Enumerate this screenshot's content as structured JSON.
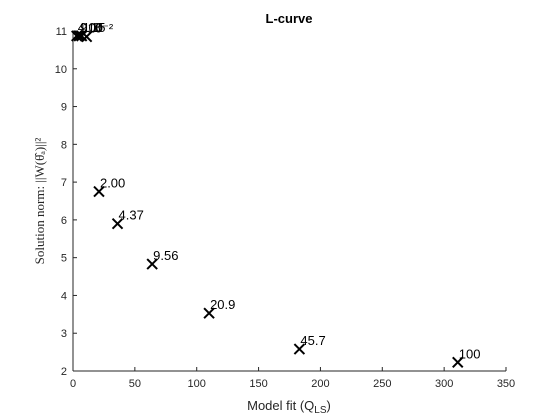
{
  "chart_data": {
    "type": "scatter",
    "title": "L-curve",
    "xlabel_main": "Model fit (Q",
    "xlabel_sub": "LS",
    "xlabel_end": ")",
    "ylabel": "Solution norm:  ||W(θ̂ₐ)||²",
    "xlim": [
      0,
      350
    ],
    "ylim": [
      2,
      11
    ],
    "xticks": [
      0,
      50,
      100,
      150,
      200,
      250,
      300,
      350
    ],
    "yticks": [
      2,
      3,
      4,
      5,
      6,
      7,
      8,
      9,
      10,
      11
    ],
    "grid": false,
    "marker": "x",
    "color": "#000000",
    "points": [
      {
        "x": 3,
        "y": 10.87,
        "label": "4.00"
      },
      {
        "x": 5,
        "y": 10.87,
        "label": "9.15"
      },
      {
        "x": 7,
        "y": 10.87,
        "label": "1.8"
      },
      {
        "x": 11,
        "y": 10.85,
        "label": "10⁻²"
      },
      {
        "x": 21,
        "y": 6.75,
        "label": "2.00"
      },
      {
        "x": 36,
        "y": 5.9,
        "label": "4.37"
      },
      {
        "x": 64,
        "y": 4.83,
        "label": "9.56"
      },
      {
        "x": 110,
        "y": 3.53,
        "label": "20.9"
      },
      {
        "x": 183,
        "y": 2.58,
        "label": "45.7"
      },
      {
        "x": 311,
        "y": 2.23,
        "label": "100"
      }
    ]
  }
}
